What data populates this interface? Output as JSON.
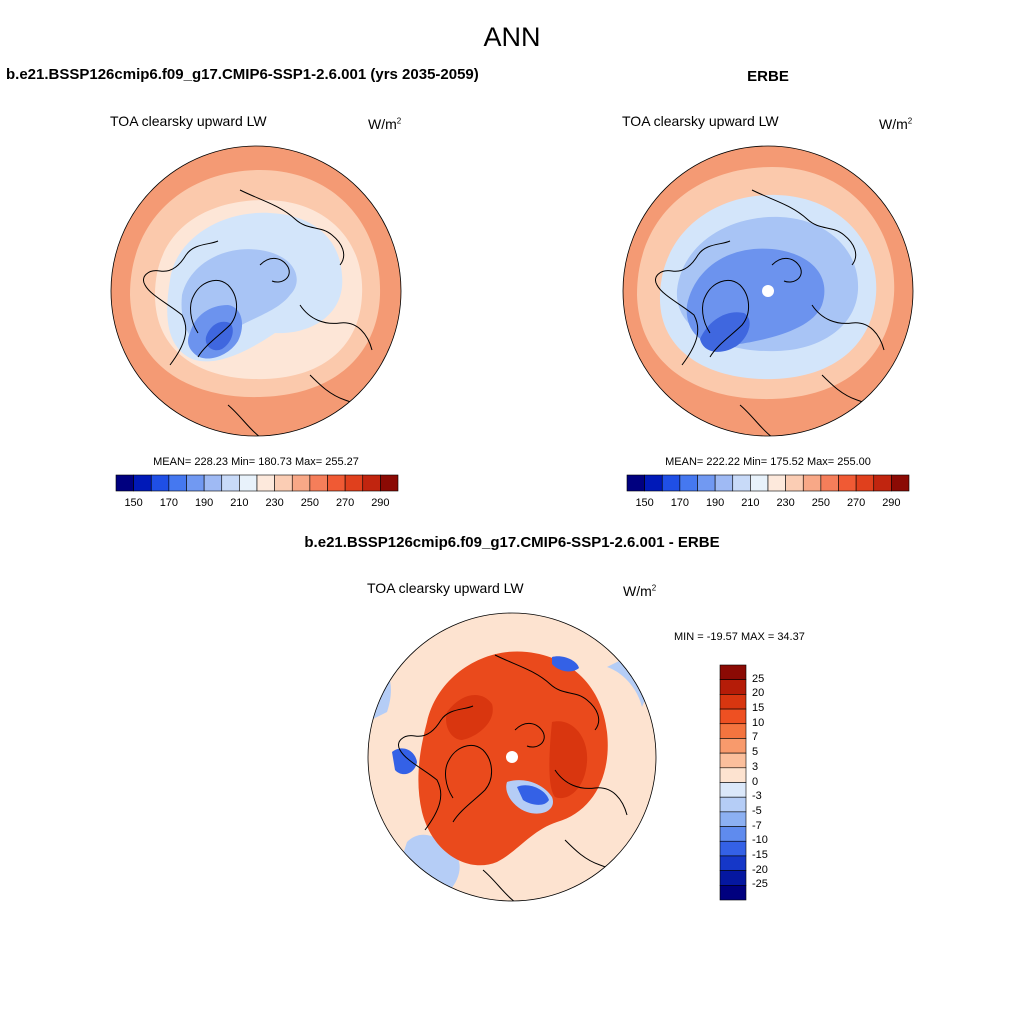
{
  "page": {
    "season": "ANN",
    "case_title": "b.e21.BSSP126cmip6.f09_g17.CMIP6-SSP1-2.6.001 (yrs 2035-2059)",
    "obs_title": "ERBE",
    "diff_title": "b.e21.BSSP126cmip6.f09_g17.CMIP6-SSP1-2.6.001 - ERBE"
  },
  "panels": {
    "model": {
      "variable": "TOA clearsky upward LW",
      "units_base": "W/m",
      "units_exp": "2",
      "stats": "MEAN= 228.23  Min= 180.73  Max= 255.27",
      "mean": 228.23,
      "min": 180.73,
      "max": 255.27
    },
    "obs": {
      "variable": "TOA clearsky upward LW",
      "units_base": "W/m",
      "units_exp": "2",
      "stats": "MEAN= 222.22  Min= 175.52  Max= 255.00",
      "mean": 222.22,
      "min": 175.52,
      "max": 255.0
    },
    "diff": {
      "variable": "TOA clearsky upward LW",
      "units_base": "W/m",
      "units_exp": "2",
      "stats": "MIN = -19.57 MAX =  34.37",
      "min": -19.57,
      "max": 34.37
    }
  },
  "colorbars": {
    "abs": {
      "labels": [
        "150",
        "170",
        "190",
        "210",
        "230",
        "250",
        "270",
        "290"
      ],
      "colors": [
        "#00007f",
        "#0019b8",
        "#1f4fe6",
        "#4578f0",
        "#7199f2",
        "#9fbaf4",
        "#c8daf8",
        "#e8f2fb",
        "#fde9dc",
        "#fbcdb4",
        "#f8a887",
        "#f57e5a",
        "#f05a34",
        "#e0401d",
        "#c1250f",
        "#8b0a04"
      ]
    },
    "diff": {
      "labels": [
        "25",
        "20",
        "15",
        "10",
        "7",
        "5",
        "3",
        "0",
        "-3",
        "-5",
        "-7",
        "-10",
        "-15",
        "-20",
        "-25"
      ],
      "colors": [
        "#8b0a04",
        "#b51c08",
        "#d83610",
        "#ee5022",
        "#f4743f",
        "#f89a6c",
        "#fbbf9c",
        "#fde3d0",
        "#dbe8fa",
        "#b5cdf6",
        "#8cb0f2",
        "#5f8bee",
        "#3461e6",
        "#1537c8",
        "#0517a0",
        "#00007f"
      ]
    }
  },
  "map_colors": {
    "warm_outer": "#f49a74",
    "warm_mid": "#fbc9ac",
    "warm_light": "#fde6d7",
    "cool_light": "#d3e5fa",
    "cool_mid": "#a8c4f5",
    "cool_deep": "#6c93ee",
    "cool_deepest": "#3f67df",
    "diff_red": "#ea4a1c",
    "diff_red_deep": "#d9360f",
    "diff_pale": "#fde3d0",
    "diff_blue": "#b5cdf6",
    "diff_blue_deep": "#3461e6"
  }
}
